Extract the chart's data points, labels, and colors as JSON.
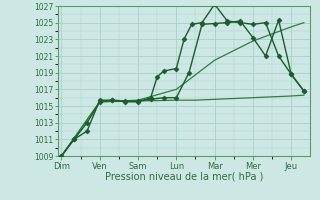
{
  "title": "",
  "xlabel": "Pression niveau de la mer( hPa )",
  "background_color": "#cde8e4",
  "grid_color": "#a8d0ca",
  "line_color_dark": "#1a5c2a",
  "line_color_mid": "#2e7d42",
  "ylim": [
    1009,
    1027
  ],
  "yticks": [
    1009,
    1011,
    1013,
    1015,
    1017,
    1019,
    1021,
    1023,
    1025,
    1027
  ],
  "x_labels": [
    "Dim",
    "Ven",
    "Sam",
    "Lun",
    "Mar",
    "Mer",
    "Jeu"
  ],
  "x_positions": [
    0,
    1,
    2,
    3,
    4,
    5,
    6
  ],
  "line1_x": [
    0,
    0.33,
    0.67,
    1.0,
    1.33,
    1.67,
    2.0,
    2.33,
    2.5,
    2.67,
    3.0,
    3.2,
    3.4,
    3.67,
    4.0,
    4.33,
    4.67,
    5.0,
    5.33,
    5.67,
    6.0,
    6.33
  ],
  "line1_y": [
    1009,
    1011,
    1012,
    1015.7,
    1015.7,
    1015.5,
    1015.5,
    1016.0,
    1018.5,
    1019.2,
    1019.5,
    1023.0,
    1024.8,
    1025.0,
    1027.2,
    1025.2,
    1025.0,
    1024.8,
    1025.0,
    1021.0,
    1018.8,
    1016.8
  ],
  "line2_x": [
    0,
    0.33,
    0.67,
    1.0,
    1.33,
    1.67,
    2.0,
    2.33,
    2.67,
    3.0,
    3.33,
    3.67,
    4.0,
    4.33,
    4.67,
    5.0,
    5.33,
    5.67,
    6.0,
    6.33
  ],
  "line2_y": [
    1009,
    1011,
    1013,
    1015.5,
    1015.7,
    1015.6,
    1015.6,
    1015.8,
    1016.0,
    1016.0,
    1019.0,
    1024.8,
    1024.9,
    1025.0,
    1025.2,
    1023.2,
    1021.0,
    1025.3,
    1018.8,
    1016.8
  ],
  "line3_x": [
    0,
    1.0,
    2.0,
    3.0,
    3.5,
    4.0,
    4.5,
    5.0,
    5.5,
    6.0,
    6.33
  ],
  "line3_y": [
    1009,
    1015.5,
    1015.6,
    1015.7,
    1015.7,
    1015.8,
    1015.9,
    1016.0,
    1016.1,
    1016.2,
    1016.3
  ],
  "line4_x": [
    0,
    1.0,
    2.0,
    3.0,
    4.0,
    5.0,
    6.0,
    6.33
  ],
  "line4_y": [
    1009,
    1015.5,
    1015.7,
    1017.0,
    1020.5,
    1022.8,
    1024.5,
    1025.0
  ]
}
